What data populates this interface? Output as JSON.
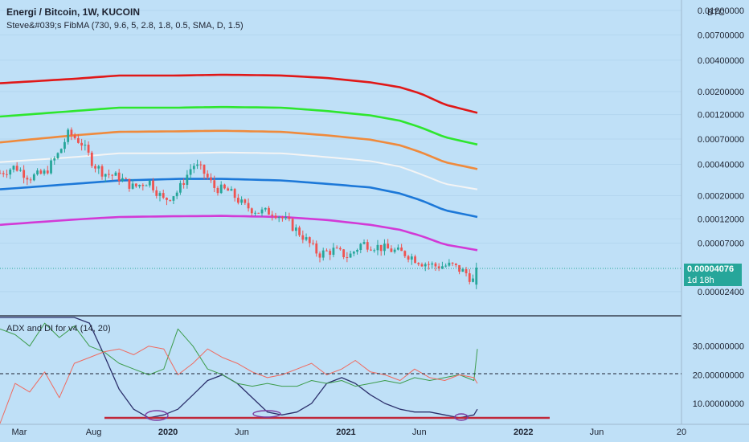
{
  "header": {
    "title": "Energi / Bitcoin, 1W, KUCOIN",
    "indicator": "Steve&#039;s FibMA (730, 9.6, 5, 2.8, 1.8, 0.5, SMA, D, 1.5)",
    "sub_indicator": "ADX and DI for v4 (14, 20)"
  },
  "price_axis": {
    "currency": "BTC",
    "ticks": [
      "0.01200000",
      "0.00700000",
      "0.00400000",
      "0.00200000",
      "0.00120000",
      "0.00070000",
      "0.00040000",
      "0.00020000",
      "0.00012000",
      "0.00007000",
      "0.00002400"
    ],
    "current_price": "0.00004076",
    "countdown": "1d 18h"
  },
  "adx_axis": {
    "ticks": [
      "30.00000000",
      "20.00000000",
      "10.00000000"
    ]
  },
  "time_axis": {
    "ticks": [
      "Mar",
      "Aug",
      "2020",
      "Jun",
      "2021",
      "Jun",
      "2022",
      "Jun",
      "20"
    ]
  },
  "colors": {
    "background": "#bfe0f7",
    "up": "#26a69a",
    "down": "#ef5350",
    "band_red": "#e01818",
    "band_green": "#2ee62e",
    "band_orange": "#ef8a3c",
    "band_white": "#f4f4f4",
    "band_blue": "#1c78d8",
    "band_magenta": "#d23ad6",
    "adx": "#2b2f6b",
    "di_plus": "#3d9c4c",
    "di_minus": "#f06a5f"
  },
  "chart_data": [
    {
      "type": "line",
      "scale": "log",
      "ylim": [
        1.9e-05,
        0.0136
      ],
      "x_range": [
        "2019-03-01",
        "2023-01-01"
      ],
      "bands": [
        {
          "x": [
            "2019-03-01",
            "2019-08-01",
            "2019-11-01",
            "2020-03-01",
            "2020-06-01",
            "2020-10-01",
            "2021-01-01",
            "2021-04-01",
            "2021-06-01",
            "2021-07-15",
            "2021-09-01",
            "2021-11-07"
          ],
          "values": [
            0.0024,
            0.00265,
            0.00285,
            0.00285,
            0.0029,
            0.00285,
            0.0027,
            0.00245,
            0.0022,
            0.0019,
            0.0015,
            0.00125
          ]
        },
        {
          "x": [
            "2019-03-01",
            "2019-08-01",
            "2019-11-01",
            "2020-03-01",
            "2020-06-01",
            "2020-10-01",
            "2021-01-01",
            "2021-04-01",
            "2021-06-01",
            "2021-07-15",
            "2021-09-01",
            "2021-11-07"
          ],
          "values": [
            0.00115,
            0.0013,
            0.0014,
            0.0014,
            0.00142,
            0.0014,
            0.0013,
            0.00118,
            0.00105,
            0.0009,
            0.00073,
            0.00062
          ]
        },
        {
          "x": [
            "2019-03-01",
            "2019-08-01",
            "2019-11-01",
            "2020-03-01",
            "2020-06-01",
            "2020-10-01",
            "2021-01-01",
            "2021-04-01",
            "2021-06-01",
            "2021-07-15",
            "2021-09-01",
            "2021-11-07"
          ],
          "values": [
            0.00065,
            0.00076,
            0.00082,
            0.00083,
            0.00084,
            0.00082,
            0.00076,
            0.00069,
            0.00061,
            0.00052,
            0.00042,
            0.00036
          ]
        },
        {
          "x": [
            "2019-03-01",
            "2019-08-01",
            "2019-11-01",
            "2020-03-01",
            "2020-06-01",
            "2020-10-01",
            "2021-01-01",
            "2021-04-01",
            "2021-06-01",
            "2021-07-15",
            "2021-09-01",
            "2021-11-07"
          ],
          "values": [
            0.00042,
            0.00047,
            0.00051,
            0.00051,
            0.00052,
            0.00051,
            0.00047,
            0.00043,
            0.00038,
            0.00032,
            0.00026,
            0.00023
          ]
        },
        {
          "x": [
            "2019-03-01",
            "2019-08-01",
            "2019-11-01",
            "2020-03-01",
            "2020-06-01",
            "2020-10-01",
            "2021-01-01",
            "2021-04-01",
            "2021-06-01",
            "2021-07-15",
            "2021-09-01",
            "2021-11-07"
          ],
          "values": [
            0.00023,
            0.00026,
            0.00028,
            0.00029,
            0.00029,
            0.00028,
            0.00026,
            0.00024,
            0.00021,
            0.00018,
            0.000145,
            0.000125
          ]
        },
        {
          "x": [
            "2019-03-01",
            "2019-08-01",
            "2019-11-01",
            "2020-03-01",
            "2020-06-01",
            "2020-10-01",
            "2021-01-01",
            "2021-04-01",
            "2021-06-01",
            "2021-07-15",
            "2021-09-01",
            "2021-11-07"
          ],
          "values": [
            0.000105,
            0.000118,
            0.000125,
            0.000127,
            0.000128,
            0.000125,
            0.000117,
            0.000105,
            9.4e-05,
            8.2e-05,
            6.8e-05,
            6e-05
          ]
        }
      ],
      "price_path": {
        "x": [
          "2019-03-01",
          "2019-04-01",
          "2019-05-01",
          "2019-06-01",
          "2019-07-01",
          "2019-07-20",
          "2019-08-15",
          "2019-09-10",
          "2019-10-01",
          "2019-11-01",
          "2019-12-01",
          "2020-01-01",
          "2020-02-01",
          "2020-03-01",
          "2020-04-01",
          "2020-04-20",
          "2020-05-15",
          "2020-06-15",
          "2020-07-15",
          "2020-08-15",
          "2020-09-15",
          "2020-10-15",
          "2020-11-15",
          "2020-12-15",
          "2021-01-15",
          "2021-02-15",
          "2021-03-15",
          "2021-04-15",
          "2021-05-15",
          "2021-06-15",
          "2021-07-15",
          "2021-08-15",
          "2021-09-15",
          "2021-10-15",
          "2021-10-31",
          "2021-11-07"
        ],
        "values": [
          0.00033,
          0.00038,
          0.0003,
          0.00033,
          0.00052,
          0.0008,
          0.00065,
          0.0004,
          0.00033,
          0.0003,
          0.00024,
          0.00028,
          0.00018,
          0.00022,
          0.0004,
          0.00035,
          0.00024,
          0.00022,
          0.00016,
          0.00014,
          0.00014,
          0.00011,
          8e-05,
          5.5e-05,
          6e-05,
          5.2e-05,
          7e-05,
          6.5e-05,
          6e-05,
          5.5e-05,
          4.6e-05,
          4.2e-05,
          4.3e-05,
          3.6e-05,
          3e-05,
          4.076e-05
        ]
      }
    },
    {
      "type": "line",
      "ylim": [
        3,
        40
      ],
      "x_range": [
        "2019-03-01",
        "2023-01-01"
      ],
      "threshold": 20,
      "series": [
        {
          "x": [
            "2019-03-01",
            "2019-04-01",
            "2019-05-01",
            "2019-06-01",
            "2019-07-01",
            "2019-08-01",
            "2019-09-01",
            "2019-10-01",
            "2019-11-01",
            "2019-12-01",
            "2020-01-01",
            "2020-02-01",
            "2020-03-01",
            "2020-04-01",
            "2020-05-01",
            "2020-06-01",
            "2020-07-01",
            "2020-08-01",
            "2020-09-01",
            "2020-10-01",
            "2020-11-01",
            "2020-12-01",
            "2021-01-01",
            "2021-02-01",
            "2021-03-01",
            "2021-04-01",
            "2021-05-01",
            "2021-06-01",
            "2021-07-01",
            "2021-08-01",
            "2021-09-01",
            "2021-10-01",
            "2021-10-31",
            "2021-11-07"
          ],
          "values": [
            40,
            40,
            40,
            40,
            40,
            40,
            38,
            27,
            15,
            8,
            5,
            6,
            8,
            13,
            18,
            20,
            17,
            12,
            7,
            6,
            7,
            10,
            17,
            19,
            17,
            13,
            10,
            8,
            7,
            7,
            6,
            5,
            6,
            8
          ]
        },
        {
          "x": [
            "2019-03-01",
            "2019-04-01",
            "2019-05-01",
            "2019-06-01",
            "2019-07-01",
            "2019-08-01",
            "2019-09-01",
            "2019-10-01",
            "2019-11-01",
            "2019-12-01",
            "2020-01-01",
            "2020-02-01",
            "2020-03-01",
            "2020-04-01",
            "2020-05-01",
            "2020-06-01",
            "2020-07-01",
            "2020-08-01",
            "2020-09-01",
            "2020-10-01",
            "2020-11-01",
            "2020-12-01",
            "2021-01-01",
            "2021-02-01",
            "2021-03-01",
            "2021-04-01",
            "2021-05-01",
            "2021-06-01",
            "2021-07-01",
            "2021-08-01",
            "2021-09-01",
            "2021-10-01",
            "2021-10-31",
            "2021-11-07"
          ],
          "values": [
            36,
            34,
            30,
            38,
            33,
            37,
            30,
            28,
            24,
            22,
            20,
            22,
            36,
            30,
            22,
            20,
            17,
            16,
            17,
            16,
            16,
            18,
            17,
            18,
            16,
            17,
            18,
            17,
            19,
            18,
            19,
            20,
            18,
            29
          ]
        },
        {
          "x": [
            "2019-03-01",
            "2019-04-01",
            "2019-05-01",
            "2019-06-01",
            "2019-07-01",
            "2019-08-01",
            "2019-09-01",
            "2019-10-01",
            "2019-11-01",
            "2019-12-01",
            "2020-01-01",
            "2020-02-01",
            "2020-03-01",
            "2020-04-01",
            "2020-05-01",
            "2020-06-01",
            "2020-07-01",
            "2020-08-01",
            "2020-09-01",
            "2020-10-01",
            "2020-11-01",
            "2020-12-01",
            "2021-01-01",
            "2021-02-01",
            "2021-03-01",
            "2021-04-01",
            "2021-05-01",
            "2021-06-01",
            "2021-07-01",
            "2021-08-01",
            "2021-09-01",
            "2021-10-01",
            "2021-10-31",
            "2021-11-07"
          ],
          "values": [
            3,
            17,
            14,
            21,
            12,
            24,
            26,
            28,
            29,
            27,
            30,
            29,
            20,
            24,
            29,
            26,
            24,
            21,
            19,
            20,
            22,
            24,
            20,
            22,
            25,
            21,
            20,
            18,
            22,
            19,
            18,
            20,
            19,
            17
          ]
        }
      ]
    }
  ]
}
